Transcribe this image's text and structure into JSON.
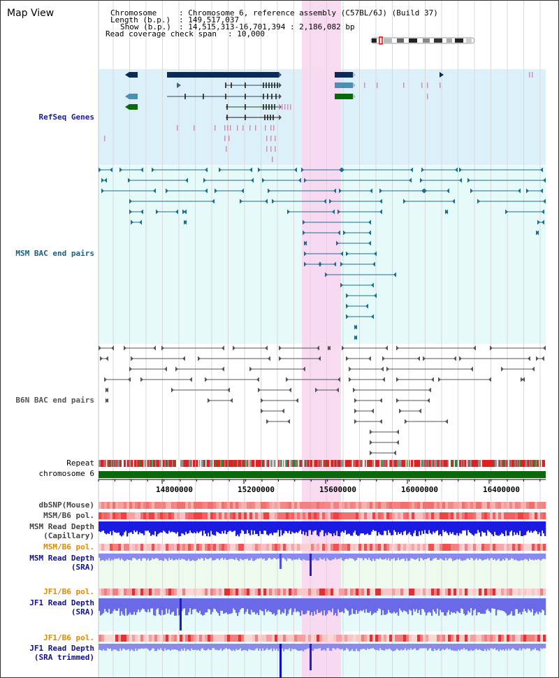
{
  "title": "Map View",
  "info": {
    "chromosome_key": "Chromosome",
    "chromosome_val": ": Chromosome 6, reference assembly (C57BL/6J) (Build 37)",
    "length_key": "Length (b.p.)",
    "length_val": ": 149,517,037",
    "show_key": "Show (b.p.)",
    "show_val": ": 14,515,313-16,701,394 : 2,186,082 bp",
    "read_cov_key": "Read coverage check span",
    "read_cov_val": ": 10,000"
  },
  "tracks": {
    "refseq": "RefSeq Genes",
    "msm_bac": "MSM BAC end pairs",
    "b6n_bac": "B6N BAC end pairs",
    "repeat": "Repeat",
    "chromosome": "chromosome 6",
    "dbsnp": "dbSNP(Mouse)",
    "msm_b6_pol_1": "MSM/B6 pol.",
    "msm_read_depth_cap": "MSM Read Depth",
    "msm_read_depth_cap2": "(Capillary)",
    "msm_b6_pol_2": "MSM/B6 pol.",
    "msm_read_depth_sra": "MSM Read Depth",
    "msm_read_depth_sra2": "(SRA)",
    "jf1_b6_pol_1": "JF1/B6 pol.",
    "jf1_read_depth": "JF1 Read Depth",
    "jf1_read_depth2": "(SRA)",
    "jf1_b6_pol_2": "JF1/B6 pol.",
    "jf1_read_depth_trim": "JF1 Read Depth",
    "jf1_read_depth_trim2": "(SRA trimmed)"
  },
  "axis_ticks": [
    "14800000",
    "15200000",
    "15600000",
    "16000000",
    "16400000"
  ],
  "colors": {
    "refseq_label": "#1a1aa0",
    "msm_label": "#1a6080",
    "b6n_label": "#555555",
    "pol_label": "#e08a00",
    "depth_label": "#10108a",
    "highlight": "#f8d8f0"
  }
}
